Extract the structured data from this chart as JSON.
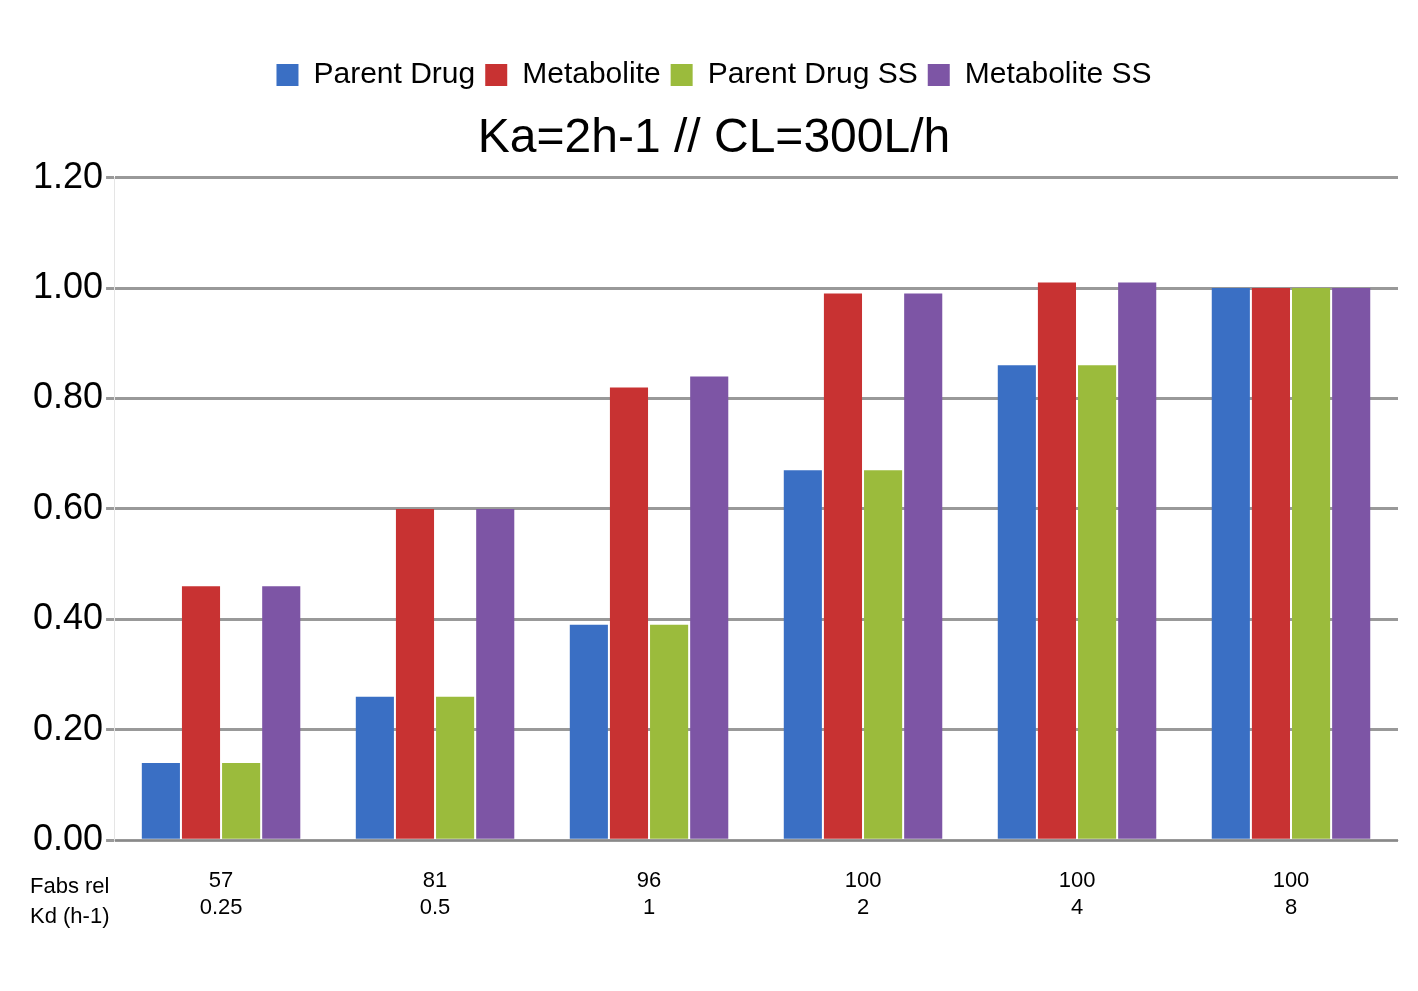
{
  "chart_data": {
    "type": "bar",
    "title": "Ka=2h-1 // CL=300L/h",
    "categories": [
      "57\n0.25",
      "81\n0.5",
      "96\n1",
      "100\n2",
      "100\n4",
      "100\n8"
    ],
    "annotations": [
      "Fabs rel\nKd (h-1)"
    ],
    "series": [
      {
        "name": "Parent Drug",
        "color": "#3a6fc4",
        "values": [
          0.14,
          0.26,
          0.39,
          0.67,
          0.86,
          1.0
        ]
      },
      {
        "name": "Metabolite",
        "color": "#c83232",
        "values": [
          0.46,
          0.6,
          0.82,
          0.99,
          1.01,
          1.0
        ]
      },
      {
        "name": "Parent Drug SS",
        "color": "#9bbb3c",
        "values": [
          0.14,
          0.26,
          0.39,
          0.67,
          0.86,
          1.0
        ]
      },
      {
        "name": "Metabolite SS",
        "color": "#7d55a5",
        "values": [
          0.46,
          0.6,
          0.84,
          0.99,
          1.01,
          1.0
        ]
      }
    ],
    "ylim": [
      0,
      1.2
    ],
    "yticks": [
      {
        "value": 0,
        "label": "0.00"
      },
      {
        "value": 0.2,
        "label": "0.20"
      },
      {
        "value": 0.4,
        "label": "0.40"
      },
      {
        "value": 0.6,
        "label": "0.60"
      },
      {
        "value": 0.8,
        "label": "0.80"
      },
      {
        "value": 1,
        "label": "1.00"
      },
      {
        "value": 1.2,
        "label": "1.20"
      }
    ],
    "grid": "y",
    "legend": "top"
  }
}
